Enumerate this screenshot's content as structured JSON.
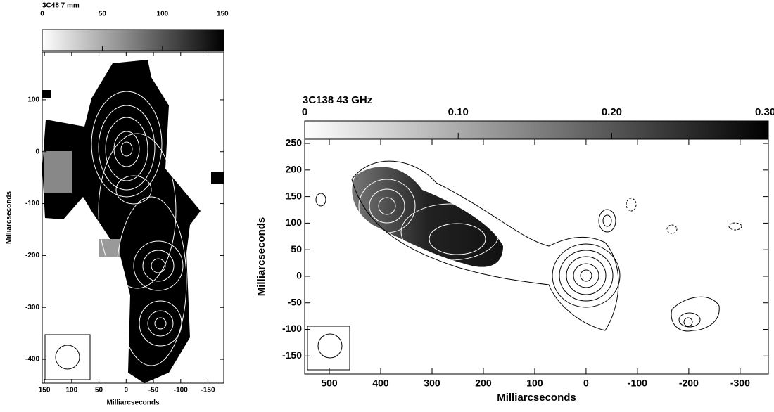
{
  "chart_data": [
    {
      "type": "image",
      "title": "3C48 7 mm",
      "xlabel": "Milliarcseconds",
      "ylabel": "Milliarcseconds",
      "xlim": [
        154,
        -179
      ],
      "ylim": [
        -446,
        192
      ],
      "xticks": [
        150,
        100,
        50,
        0,
        -50,
        -100,
        -150
      ],
      "yticks": [
        100,
        0,
        -100,
        -200,
        -300,
        -400
      ],
      "colorbar": {
        "lim": [
          0,
          151
        ],
        "ticks": [
          0,
          50,
          100,
          150
        ]
      }
    },
    {
      "type": "image",
      "title": "3C138 43 GHz",
      "xlabel": "Milliarcseconds",
      "ylabel": "Milliarcseconds",
      "xlim": [
        548,
        -355
      ],
      "ylim": [
        -184,
        258
      ],
      "xticks": [
        500,
        400,
        300,
        200,
        100,
        0,
        -100,
        -200,
        -300
      ],
      "yticks": [
        250,
        200,
        150,
        100,
        50,
        0,
        -50,
        -100,
        -150
      ],
      "colorbar": {
        "lim": [
          0,
          0.302
        ],
        "ticks": [
          0,
          {
            "value": 0.1,
            "label": "0.10"
          },
          {
            "value": 0.2,
            "label": "0.20"
          },
          {
            "value": 0.3,
            "label": "0.30"
          }
        ]
      }
    }
  ]
}
